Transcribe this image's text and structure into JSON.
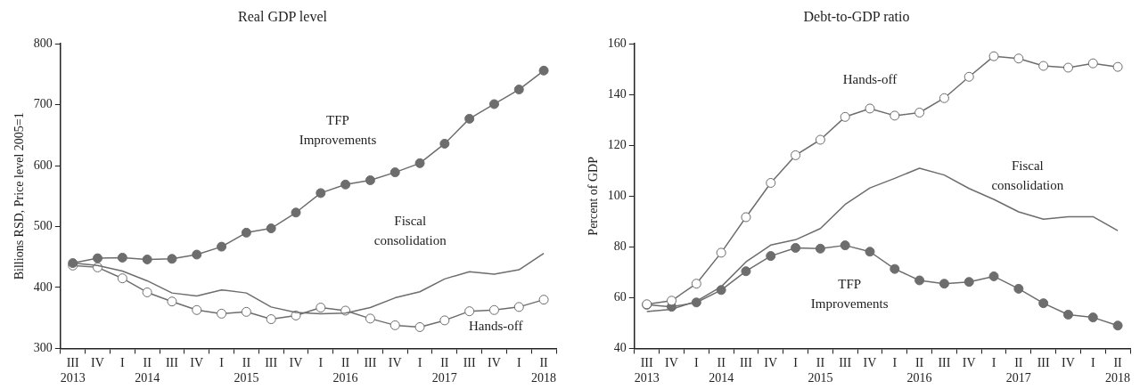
{
  "chart_data": [
    {
      "type": "line",
      "title": "Real GDP level",
      "ylabel": "Billions RSD, Price level 2005=1",
      "categories": [
        "III\n2013",
        "IV",
        "I",
        "II\n2014",
        "III",
        "IV",
        "I",
        "II\n2015",
        "III",
        "IV",
        "I",
        "II\n2016",
        "III",
        "IV",
        "I",
        "II\n2017",
        "III",
        "IV",
        "I",
        "II\n2018"
      ],
      "ylim": [
        300,
        800
      ],
      "yticks": [
        300,
        400,
        500,
        600,
        700,
        800
      ],
      "grid": false,
      "legend": false,
      "line_style": "solid",
      "series": [
        {
          "name": "TFP Improvements",
          "color": "#6d6d6d",
          "marker": "circle",
          "values": [
            440,
            448,
            449,
            446,
            447,
            454,
            467,
            490,
            497,
            523,
            555,
            569,
            576,
            589,
            604,
            636,
            677,
            701,
            725,
            756
          ]
        },
        {
          "name": "Fiscal consolidation",
          "color": "#6d6d6d",
          "marker": "none",
          "values": [
            440,
            436,
            427,
            411,
            391,
            386,
            396,
            391,
            368,
            359,
            357,
            358,
            367,
            383,
            393,
            414,
            426,
            422,
            429,
            456
          ]
        },
        {
          "name": "Hands-off",
          "color": "#6d6d6d",
          "marker": "circle_open",
          "values": [
            436,
            433,
            415,
            392,
            377,
            363,
            357,
            360,
            348,
            354,
            367,
            362,
            349,
            338,
            335,
            346,
            361,
            363,
            368,
            380
          ]
        }
      ]
    },
    {
      "type": "line",
      "title": "Debt-to-GDP ratio",
      "ylabel": "Percent of GDP",
      "categories": [
        "III\n2013",
        "IV",
        "I",
        "II\n2014",
        "III",
        "IV",
        "I",
        "II\n2015",
        "III",
        "IV",
        "I",
        "II\n2016",
        "III",
        "IV",
        "I",
        "II\n2017",
        "III",
        "IV",
        "I",
        "II\n2018"
      ],
      "ylim": [
        40,
        160
      ],
      "yticks": [
        40,
        60,
        80,
        100,
        120,
        140,
        160
      ],
      "grid": false,
      "legend": false,
      "line_style": "solid",
      "series": [
        {
          "name": "Hands-off",
          "color": "#6d6d6d",
          "marker": "circle_open",
          "values": [
            57.4,
            58.8,
            65.5,
            77.7,
            91.7,
            105.2,
            116.1,
            122.2,
            131.2,
            134.5,
            131.7,
            132.9,
            138.6,
            147,
            155.1,
            154.2,
            151.3,
            150.6,
            152.3,
            150.9
          ]
        },
        {
          "name": "Fiscal consolidation",
          "color": "#6d6d6d",
          "marker": "none",
          "values": [
            54.5,
            55.4,
            58.6,
            64.3,
            74.1,
            80.7,
            82.8,
            87.2,
            96.7,
            103.2,
            107,
            111,
            108.3,
            103,
            98.7,
            93.8,
            90.9,
            91.9,
            91.9,
            86.4
          ]
        },
        {
          "name": "TFP Improvements",
          "color": "#6d6d6d",
          "marker": "circle",
          "values": [
            57.2,
            56.4,
            58.1,
            63,
            70.4,
            76.4,
            79.6,
            79.3,
            80.6,
            78.1,
            71.3,
            66.8,
            65.5,
            66.2,
            68.4,
            63.5,
            57.8,
            53.3,
            52.2,
            49
          ]
        }
      ]
    }
  ]
}
